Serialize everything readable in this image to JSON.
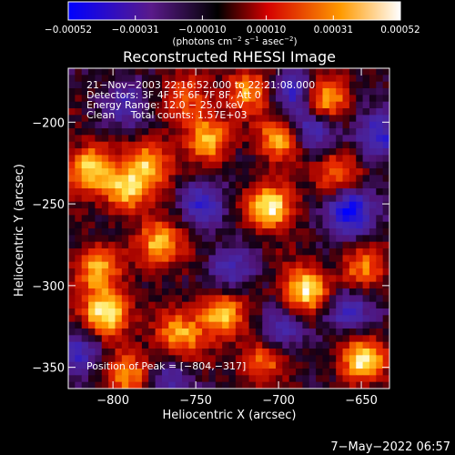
{
  "chart_data": {
    "type": "heatmap",
    "title": "Reconstructed RHESSI Image",
    "xlabel": "Heliocentric X (arcsec)",
    "ylabel": "Heliocentric Y (arcsec)",
    "xlim": [
      -827,
      -633
    ],
    "ylim": [
      -363,
      -167
    ],
    "xticks": [
      -800,
      -750,
      -700,
      -650
    ],
    "yticks": [
      -200,
      -250,
      -300,
      -350
    ],
    "xtick_labels": [
      "−800",
      "−750",
      "−700",
      "−650"
    ],
    "ytick_labels": [
      "−200",
      "−250",
      "−300",
      "−350"
    ],
    "colorbar": {
      "range": [
        -0.00052,
        0.00052
      ],
      "tick_values": [
        -0.00052,
        -0.00031,
        -0.0001,
        0.0001,
        0.00031,
        0.00052
      ],
      "tick_labels": [
        "−0.00052",
        "−0.00031",
        "−0.00010",
        "0.00010",
        "0.00031",
        "0.00052"
      ],
      "units_prefix": "(photons cm",
      "units_exp1": "−2",
      "units_mid1": " s",
      "units_exp2": "−1",
      "units_mid2": " asec",
      "units_exp3": "−2",
      "units_suffix": ")",
      "colors": [
        "#0000ff",
        "#5a1a8a",
        "#000000",
        "#d40000",
        "#ff9a00",
        "#ffffff"
      ]
    },
    "annotations": [
      "21−Nov−2003 22:16:52.000 to 22:21:08.000",
      "Detectors: 3F 4F 5F 6F 7F 8F, Att 0",
      "Energy Range: 12.0 − 25.0 keV",
      "Clean     Total counts: 1.57E+03"
    ],
    "peak_label": "Position of Peak = [−804,−317]",
    "peak": [
      -804,
      -317
    ],
    "hotspots": [
      {
        "x": -804,
        "y": -317,
        "v": 1.0
      },
      {
        "x": -704,
        "y": -252,
        "v": 0.95
      },
      {
        "x": -683,
        "y": -303,
        "v": 0.95
      },
      {
        "x": -650,
        "y": -345,
        "v": 0.88
      },
      {
        "x": -815,
        "y": -228,
        "v": 0.82
      },
      {
        "x": -793,
        "y": -242,
        "v": 0.8
      },
      {
        "x": -778,
        "y": -225,
        "v": 0.78
      },
      {
        "x": -772,
        "y": -275,
        "v": 0.8
      },
      {
        "x": -742,
        "y": -210,
        "v": 0.72
      },
      {
        "x": -700,
        "y": -210,
        "v": 0.7
      },
      {
        "x": -672,
        "y": -185,
        "v": 0.72
      },
      {
        "x": -735,
        "y": -318,
        "v": 0.78
      },
      {
        "x": -760,
        "y": -330,
        "v": 0.7
      },
      {
        "x": -665,
        "y": -230,
        "v": 0.62
      },
      {
        "x": -810,
        "y": -290,
        "v": 0.7
      },
      {
        "x": -790,
        "y": -355,
        "v": 0.62
      },
      {
        "x": -710,
        "y": -345,
        "v": 0.62
      },
      {
        "x": -718,
        "y": -180,
        "v": 0.6
      },
      {
        "x": -650,
        "y": -290,
        "v": 0.55
      },
      {
        "x": -755,
        "y": -185,
        "v": 0.55
      }
    ],
    "coldspots": [
      {
        "x": -658,
        "y": -255,
        "v": -0.85
      },
      {
        "x": -640,
        "y": -210,
        "v": -0.65
      },
      {
        "x": -680,
        "y": -205,
        "v": -0.6
      },
      {
        "x": -745,
        "y": -250,
        "v": -0.5
      },
      {
        "x": -730,
        "y": -290,
        "v": -0.45
      },
      {
        "x": -700,
        "y": -330,
        "v": -0.5
      },
      {
        "x": -660,
        "y": -315,
        "v": -0.6
      },
      {
        "x": -765,
        "y": -360,
        "v": -0.45
      },
      {
        "x": -820,
        "y": -340,
        "v": -0.45
      },
      {
        "x": -690,
        "y": -180,
        "v": -0.55
      },
      {
        "x": -790,
        "y": -190,
        "v": -0.4
      }
    ]
  },
  "footer": {
    "date": "7−May−2022 06:57"
  }
}
